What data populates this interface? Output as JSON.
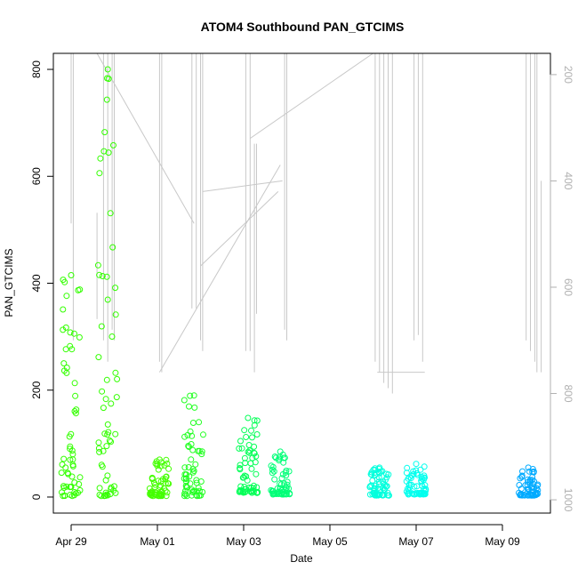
{
  "chart_data": {
    "type": "scatter",
    "title": "ATOM4 Southbound PAN_GTCIMS",
    "xlabel": "Date",
    "ylabel": "PAN_GTCIMS",
    "x_ticks": [
      "Apr 29",
      "May 01",
      "May 03",
      "May 05",
      "May 07",
      "May 09"
    ],
    "y_ticks": [
      "0",
      "200",
      "400",
      "600",
      "800"
    ],
    "ylim": [
      -30,
      830
    ],
    "y2_ticks": [
      "200",
      "400",
      "600",
      "800",
      "1000"
    ],
    "y2lim": [
      1025,
      160
    ],
    "y2_reversed": true,
    "grid": false,
    "legend": "none",
    "colors": {
      "trace": "#c8c8c8",
      "axis": "#000000",
      "right_axis": "#b0b0b0",
      "point_scale": [
        "#33ff00",
        "#00ff55",
        "#00ffdd",
        "#00ccff",
        "#0088ff"
      ]
    },
    "point_clusters": [
      {
        "day": 0.0,
        "ymin": 2,
        "ymax": 415,
        "color": "#33ff00"
      },
      {
        "day": 0.85,
        "ymin": 2,
        "ymax": 800,
        "color": "#33ff00"
      },
      {
        "day": 2.05,
        "ymin": 2,
        "ymax": 70,
        "color": "#44ff00"
      },
      {
        "day": 2.85,
        "ymin": 2,
        "ymax": 190,
        "color": "#22ff22"
      },
      {
        "day": 4.1,
        "ymin": 8,
        "ymax": 148,
        "color": "#00ff55"
      },
      {
        "day": 4.85,
        "ymin": 5,
        "ymax": 85,
        "color": "#00ff77"
      },
      {
        "day": 7.15,
        "ymin": 3,
        "ymax": 55,
        "color": "#00ffdd"
      },
      {
        "day": 8.0,
        "ymin": 5,
        "ymax": 62,
        "color": "#00ffee"
      },
      {
        "day": 10.6,
        "ymin": 3,
        "ymax": 55,
        "color": "#00aaff"
      }
    ],
    "altitude_trace_segments": [
      {
        "from": [
          0.0,
          160
        ],
        "to": [
          0.0,
          480
        ]
      },
      {
        "from": [
          0.05,
          160
        ],
        "to": [
          0.05,
          700
        ]
      },
      {
        "from": [
          0.6,
          460
        ],
        "to": [
          0.6,
          660
        ]
      },
      {
        "from": [
          0.75,
          160
        ],
        "to": [
          0.75,
          700
        ]
      },
      {
        "from": [
          0.85,
          160
        ],
        "to": [
          0.85,
          740
        ]
      },
      {
        "from": [
          0.95,
          160
        ],
        "to": [
          0.95,
          680
        ]
      },
      {
        "from": [
          1.0,
          160
        ],
        "to": [
          1.0,
          700
        ]
      },
      {
        "from": [
          2.05,
          160
        ],
        "to": [
          2.05,
          740
        ]
      },
      {
        "from": [
          2.1,
          160
        ],
        "to": [
          2.1,
          760
        ]
      },
      {
        "from": [
          2.8,
          160
        ],
        "to": [
          2.8,
          640
        ]
      },
      {
        "from": [
          2.9,
          160
        ],
        "to": [
          2.9,
          640
        ]
      },
      {
        "from": [
          3.0,
          160
        ],
        "to": [
          3.0,
          700
        ]
      },
      {
        "from": [
          3.05,
          160
        ],
        "to": [
          3.05,
          720
        ]
      },
      {
        "from": [
          4.05,
          160
        ],
        "to": [
          4.05,
          720
        ]
      },
      {
        "from": [
          4.15,
          160
        ],
        "to": [
          4.15,
          720
        ]
      },
      {
        "from": [
          4.25,
          330
        ],
        "to": [
          4.25,
          760
        ]
      },
      {
        "from": [
          4.3,
          330
        ],
        "to": [
          4.3,
          650
        ]
      },
      {
        "from": [
          4.95,
          160
        ],
        "to": [
          4.95,
          680
        ]
      },
      {
        "from": [
          5.0,
          160
        ],
        "to": [
          5.0,
          700
        ]
      },
      {
        "from": [
          7.05,
          160
        ],
        "to": [
          7.05,
          740
        ]
      },
      {
        "from": [
          7.15,
          160
        ],
        "to": [
          7.15,
          760
        ]
      },
      {
        "from": [
          7.25,
          160
        ],
        "to": [
          7.25,
          780
        ]
      },
      {
        "from": [
          7.35,
          160
        ],
        "to": [
          7.35,
          790
        ]
      },
      {
        "from": [
          7.45,
          160
        ],
        "to": [
          7.45,
          800
        ]
      },
      {
        "from": [
          7.95,
          160
        ],
        "to": [
          7.95,
          700
        ]
      },
      {
        "from": [
          8.05,
          160
        ],
        "to": [
          8.05,
          690
        ]
      },
      {
        "from": [
          8.15,
          160
        ],
        "to": [
          8.15,
          740
        ]
      },
      {
        "from": [
          10.55,
          160
        ],
        "to": [
          10.55,
          700
        ]
      },
      {
        "from": [
          10.65,
          160
        ],
        "to": [
          10.65,
          720
        ]
      },
      {
        "from": [
          10.75,
          160
        ],
        "to": [
          10.75,
          740
        ]
      },
      {
        "from": [
          10.8,
          160
        ],
        "to": [
          10.8,
          760
        ]
      },
      {
        "from": [
          10.9,
          400
        ],
        "to": [
          10.9,
          760
        ]
      },
      {
        "from": [
          0.6,
          160
        ],
        "to": [
          2.85,
          480
        ]
      },
      {
        "from": [
          2.05,
          760
        ],
        "to": [
          4.85,
          370
        ]
      },
      {
        "from": [
          3.0,
          560
        ],
        "to": [
          4.8,
          420
        ]
      },
      {
        "from": [
          3.05,
          420
        ],
        "to": [
          4.9,
          400
        ]
      },
      {
        "from": [
          4.15,
          320
        ],
        "to": [
          7.0,
          160
        ]
      },
      {
        "from": [
          7.1,
          760
        ],
        "to": [
          8.2,
          760
        ]
      }
    ]
  }
}
